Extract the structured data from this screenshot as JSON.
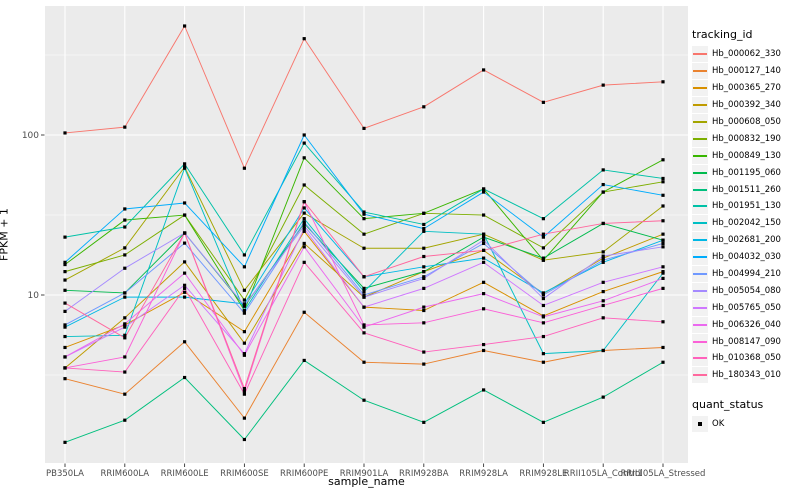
{
  "figure": {
    "background": "#FFFFFF",
    "panel_background": "#EBEBEB",
    "gridline_color": "#FFFFFF",
    "tick_color": "#333333",
    "tick_text_color": "#4D4D4D",
    "point_color": "#000000"
  },
  "legend": {
    "tracking_title": "tracking_id",
    "quant_title": "quant_status",
    "quant_value": "OK",
    "key_background": "#F2F2F2",
    "position": "right"
  },
  "chart_data": {
    "type": "line",
    "title": "",
    "xlabel": "sample_name",
    "ylabel": "FPKM + 1",
    "y_scale": "log10",
    "y_ticks": [
      10,
      100
    ],
    "y_minor_ticks": [
      3.162,
      31.62,
      316.2
    ],
    "ylim": [
      0.89,
      640
    ],
    "grid": true,
    "point_shape": "square",
    "legend_position": "right",
    "categories": [
      "PB350LA",
      "RRIM600LA",
      "RRIM600LE",
      "RRIM600SE",
      "RRIM600PE",
      "RRIM901LA",
      "RRIM928BA",
      "RRIM928LA",
      "RRIM928LE",
      "RRII105LA_Control",
      "RRII105LA_Stressed"
    ],
    "series": [
      {
        "name": "Hb_000062_330",
        "color": "#F8766D",
        "values": [
          103,
          112,
          480,
          62,
          400,
          110,
          150,
          255,
          160,
          205,
          215
        ]
      },
      {
        "name": "Hb_000127_140",
        "color": "#EA8331",
        "values": [
          3.0,
          2.4,
          5.1,
          1.7,
          7.8,
          3.8,
          3.7,
          4.5,
          3.8,
          4.5,
          4.7
        ]
      },
      {
        "name": "Hb_000365_270",
        "color": "#D89000",
        "values": [
          4.7,
          6.5,
          10.4,
          5.9,
          25,
          8.4,
          8.0,
          12,
          7.4,
          10.5,
          14
        ]
      },
      {
        "name": "Hb_000392_340",
        "color": "#C09B00",
        "values": [
          3.5,
          7.2,
          16.1,
          5.0,
          21,
          9.7,
          14,
          19,
          10.2,
          17,
          24
        ]
      },
      {
        "name": "Hb_000608_050",
        "color": "#A3A500",
        "values": [
          12.4,
          19.7,
          63,
          10.7,
          32.5,
          19.6,
          19.6,
          24,
          16.5,
          18.6,
          36
        ]
      },
      {
        "name": "Hb_000832_190",
        "color": "#7CAE00",
        "values": [
          14,
          17.8,
          31.6,
          9.3,
          48.7,
          24,
          32.4,
          31.6,
          19.7,
          44,
          51
        ]
      },
      {
        "name": "Hb_000849_130",
        "color": "#39B600",
        "values": [
          15.5,
          29.4,
          31.6,
          8.0,
          72,
          30,
          32.4,
          46,
          16.5,
          44,
          70
        ]
      },
      {
        "name": "Hb_001195_060",
        "color": "#00BB4E",
        "values": [
          10.7,
          10.3,
          24.4,
          8.5,
          28,
          11,
          14,
          23,
          17,
          28,
          22
        ]
      },
      {
        "name": "Hb_001511_260",
        "color": "#00BF7D",
        "values": [
          1.2,
          1.65,
          3.05,
          1.25,
          3.9,
          2.2,
          1.6,
          2.55,
          1.6,
          2.3,
          3.8
        ]
      },
      {
        "name": "Hb_001951_130",
        "color": "#00C1A7",
        "values": [
          23,
          26.6,
          66,
          17.8,
          89,
          33,
          27.6,
          46,
          30,
          60.5,
          53.5
        ]
      },
      {
        "name": "Hb_002042_150",
        "color": "#00BFC4",
        "values": [
          5.5,
          5.6,
          62,
          8.0,
          30,
          10.5,
          25,
          24,
          4.3,
          4.5,
          13.7
        ]
      },
      {
        "name": "Hb_002681_200",
        "color": "#00B8E5",
        "values": [
          6.3,
          9.7,
          9.7,
          8.8,
          35,
          13,
          15,
          17,
          10.3,
          16,
          22
        ]
      },
      {
        "name": "Hb_004032_030",
        "color": "#00ACFC",
        "values": [
          16,
          34.5,
          37.6,
          15,
          100,
          32,
          26,
          44,
          23,
          49,
          42
        ]
      },
      {
        "name": "Hb_004994_210",
        "color": "#7099FF",
        "values": [
          6.5,
          10.3,
          21.1,
          7.7,
          28.6,
          10,
          13,
          21,
          10,
          16.5,
          21
        ]
      },
      {
        "name": "Hb_005054_080",
        "color": "#A58AFF",
        "values": [
          7.9,
          14.7,
          24.4,
          8.6,
          27,
          9.7,
          12.7,
          22,
          9.5,
          17.5,
          20
        ]
      },
      {
        "name": "Hb_005765_050",
        "color": "#CF78FF",
        "values": [
          4.1,
          6.3,
          11.5,
          4.3,
          26,
          8.4,
          11,
          16,
          8.6,
          12,
          15
        ]
      },
      {
        "name": "Hb_006326_040",
        "color": "#EB69EF",
        "values": [
          4.1,
          6.6,
          13.7,
          4.2,
          20,
          6.3,
          8.4,
          10.2,
          7.3,
          9.2,
          12.7
        ]
      },
      {
        "name": "Hb_008147_090",
        "color": "#FB61D7",
        "values": [
          3.5,
          4.1,
          24.4,
          2.5,
          38.3,
          6.5,
          6.7,
          8.2,
          6.7,
          8.6,
          11
        ]
      },
      {
        "name": "Hb_010368_050",
        "color": "#FF62BC",
        "values": [
          3.5,
          3.3,
          11,
          2.4,
          16,
          5.8,
          4.4,
          4.9,
          5.5,
          7.2,
          6.8
        ]
      },
      {
        "name": "Hb_180343_010",
        "color": "#FF689E",
        "values": [
          8.9,
          5.4,
          24.4,
          2.6,
          38.3,
          13,
          17.4,
          19,
          24,
          28,
          29.1
        ]
      }
    ]
  }
}
